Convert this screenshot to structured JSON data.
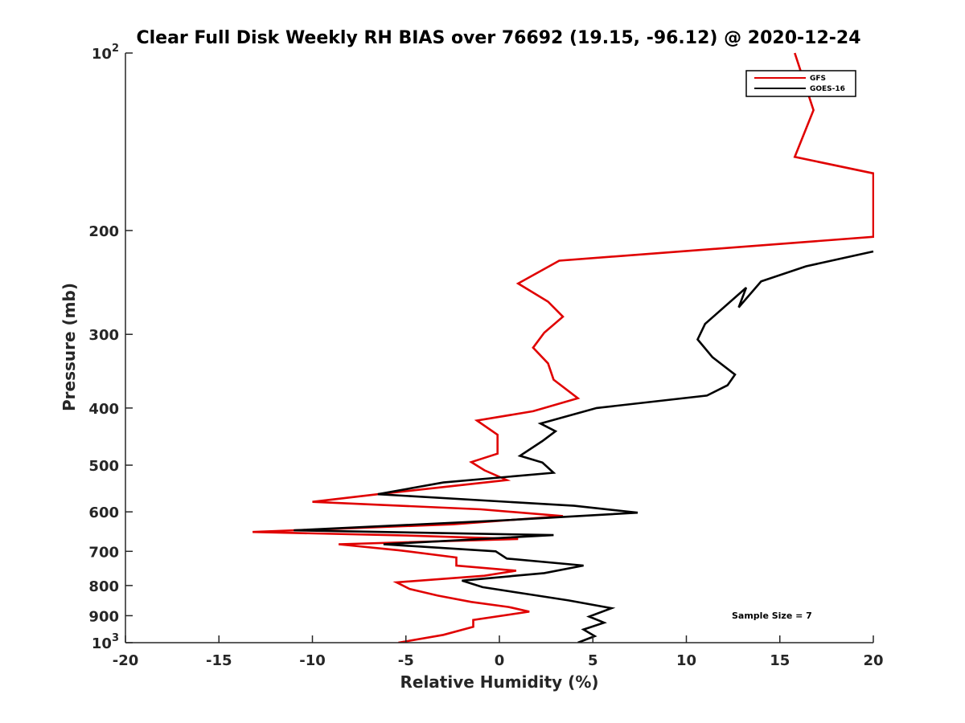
{
  "chart_data": {
    "type": "line",
    "title": "Clear Full Disk Weekly RH BIAS over 76692 (19.15, -96.12) @ 2020-12-24",
    "xlabel": "Relative Humidity (%)",
    "ylabel": "Pressure (mb)",
    "xlim": [
      -20,
      20
    ],
    "ylim": [
      100,
      1000
    ],
    "yscale": "log",
    "y_reversed": true,
    "grid": false,
    "x_ticks": [
      -20,
      -15,
      -10,
      -5,
      0,
      5,
      10,
      15,
      20
    ],
    "x_tick_labels": [
      "-20",
      "-15",
      "-10",
      "-5",
      "0",
      "5",
      "10",
      "15",
      "20"
    ],
    "y_ticks": [
      100,
      200,
      300,
      400,
      500,
      600,
      700,
      800,
      900,
      1000
    ],
    "y_tick_labels": [
      {
        "base": "10",
        "exp": "2"
      },
      {
        "base": "200",
        "exp": ""
      },
      {
        "base": "300",
        "exp": ""
      },
      {
        "base": "400",
        "exp": ""
      },
      {
        "base": "500",
        "exp": ""
      },
      {
        "base": "600",
        "exp": ""
      },
      {
        "base": "700",
        "exp": ""
      },
      {
        "base": "800",
        "exp": ""
      },
      {
        "base": "900",
        "exp": ""
      },
      {
        "base": "10",
        "exp": "3"
      }
    ],
    "legend_position": "top-right",
    "annotation": "Sample Size = 7",
    "series": [
      {
        "name": "GFS",
        "color": "#e00000",
        "points": [
          [
            15.8,
            100
          ],
          [
            16.8,
            125
          ],
          [
            15.8,
            150
          ],
          [
            20,
            160
          ],
          [
            20,
            205
          ],
          [
            3.2,
            225
          ],
          [
            1,
            246
          ],
          [
            2.6,
            264
          ],
          [
            3.4,
            280
          ],
          [
            2.4,
            298
          ],
          [
            1.8,
            316
          ],
          [
            2.6,
            336
          ],
          [
            2.9,
            358
          ],
          [
            4.2,
            385
          ],
          [
            1.8,
            405
          ],
          [
            -1.2,
            420
          ],
          [
            -0.1,
            444
          ],
          [
            -0.1,
            478
          ],
          [
            -1.5,
            494
          ],
          [
            -0.8,
            510
          ],
          [
            0.4,
            530
          ],
          [
            -6.5,
            560
          ],
          [
            -10,
            577
          ],
          [
            -1,
            594
          ],
          [
            3.4,
            610
          ],
          [
            -2.5,
            630
          ],
          [
            -13.2,
            649
          ],
          [
            -5,
            658
          ],
          [
            1,
            667
          ],
          [
            -8.6,
            681
          ],
          [
            -5.4,
            697
          ],
          [
            -2.3,
            717
          ],
          [
            -2.3,
            740
          ],
          [
            0.9,
            755
          ],
          [
            -0.8,
            770
          ],
          [
            -5.5,
            790
          ],
          [
            -4.8,
            811
          ],
          [
            -3.3,
            832
          ],
          [
            -1.5,
            853
          ],
          [
            0.5,
            870
          ],
          [
            1.6,
            886
          ],
          [
            -1.4,
            915
          ],
          [
            -1.4,
            940
          ],
          [
            -3,
            970
          ],
          [
            -5.4,
            1000
          ]
        ]
      },
      {
        "name": "GOES-16",
        "color": "#000000",
        "points": [
          [
            20,
            217
          ],
          [
            16.4,
            230
          ],
          [
            14,
            244
          ],
          [
            12.8,
            270
          ],
          [
            13.2,
            250
          ],
          [
            11,
            288
          ],
          [
            10.6,
            306
          ],
          [
            11.4,
            328
          ],
          [
            12.6,
            351
          ],
          [
            12.2,
            366
          ],
          [
            11.1,
            381
          ],
          [
            5.2,
            400
          ],
          [
            2.2,
            425
          ],
          [
            3,
            438
          ],
          [
            2.3,
            455
          ],
          [
            1.1,
            482
          ],
          [
            2.3,
            495
          ],
          [
            2.9,
            515
          ],
          [
            -3,
            535
          ],
          [
            -6.5,
            560
          ],
          [
            4,
            586
          ],
          [
            7.4,
            602
          ],
          [
            -0.1,
            621
          ],
          [
            -11,
            645
          ],
          [
            2.9,
            657
          ],
          [
            -6.2,
            681
          ],
          [
            -0.2,
            700
          ],
          [
            0.4,
            720
          ],
          [
            4.5,
            740
          ],
          [
            2.4,
            762
          ],
          [
            -2,
            785
          ],
          [
            -0.9,
            805
          ],
          [
            1.4,
            826
          ],
          [
            3.7,
            848
          ],
          [
            6,
            874
          ],
          [
            4.8,
            903
          ],
          [
            5.6,
            925
          ],
          [
            4.5,
            950
          ],
          [
            5.1,
            975
          ],
          [
            4.2,
            1000
          ]
        ]
      }
    ]
  }
}
